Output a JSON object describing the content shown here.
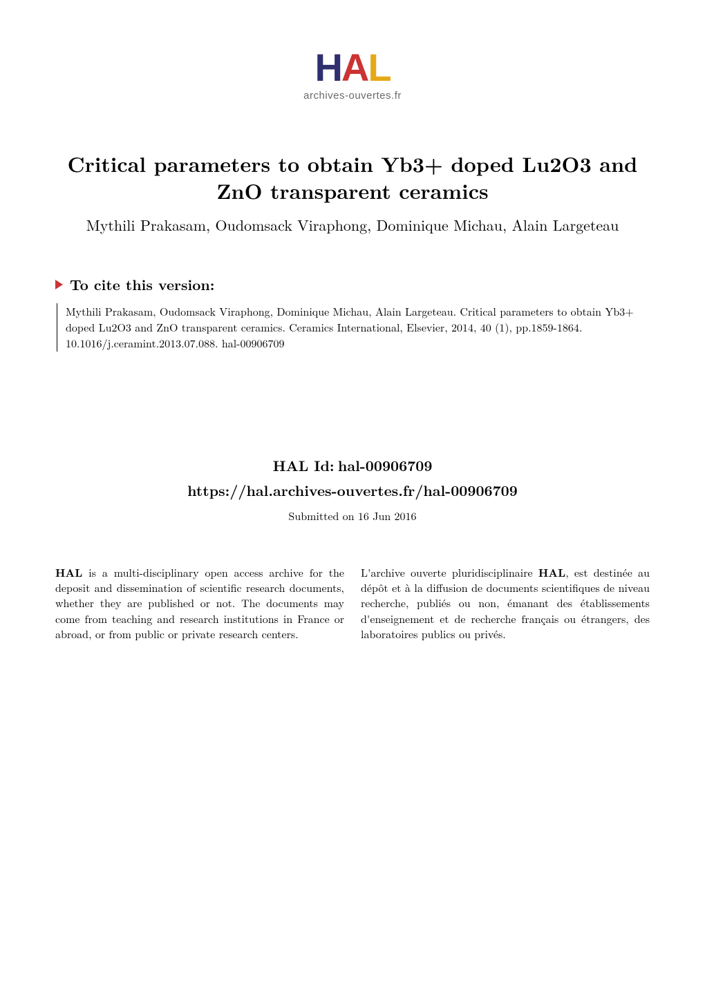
{
  "logo": {
    "letters": [
      "H",
      "A",
      "L"
    ],
    "colors": [
      "#2f2f6f",
      "#cc3333",
      "#e6a817"
    ],
    "subtitle": "archives-ouvertes.fr"
  },
  "title": "Critical parameters to obtain Yb3+ doped Lu2O3 and ZnO transparent ceramics",
  "authors": "Mythili Prakasam, Oudomsack Viraphong, Dominique Michau, Alain Largeteau",
  "cite": {
    "heading": "To cite this version:",
    "text": "Mythili Prakasam, Oudomsack Viraphong, Dominique Michau, Alain Largeteau. Critical parameters to obtain Yb3+ doped Lu2O3 and ZnO transparent ceramics. Ceramics International, Elsevier, 2014, 40 (1), pp.1859-1864. ​10.1016/j.ceramint.2013.07.088​. ​hal-00906709​"
  },
  "hal_id": {
    "label": "HAL Id:",
    "value": "hal-00906709",
    "url": "https://hal.archives-ouvertes.fr/hal-00906709"
  },
  "submitted": "Submitted on 16 Jun 2016",
  "columns": {
    "left_bold": "HAL",
    "left_rest": " is a multi-disciplinary open access archive for the deposit and dissemination of scientific research documents, whether they are published or not. The documents may come from teaching and research institutions in France or abroad, or from public or private research centers.",
    "right_pre": "L'archive ouverte pluridisciplinaire ",
    "right_bold": "HAL",
    "right_rest": ", est destinée au dépôt et à la diffusion de documents scientifiques de niveau recherche, publiés ou non, émanant des établissements d'enseignement et de recherche français ou étrangers, des laboratoires publics ou privés."
  },
  "styling": {
    "background_color": "#ffffff",
    "text_color": "#000000",
    "triangle_color": "#cc3333",
    "citation_border_color": "#000000",
    "title_fontsize": 30,
    "authors_fontsize": 22,
    "heading_fontsize": 21,
    "body_fontsize": 16,
    "logo_fontsize": 56,
    "logo_sub_fontsize": 15
  }
}
